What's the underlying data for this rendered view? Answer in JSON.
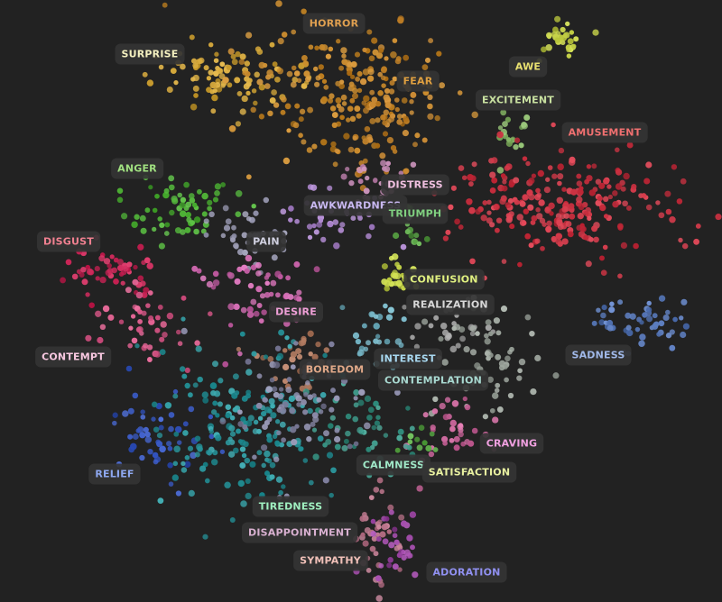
{
  "chart_data": {
    "type": "scatter",
    "title": "",
    "xlabel": "",
    "ylabel": "",
    "grid": false,
    "legend": "none",
    "background": "#222222",
    "series": [
      {
        "name": "SURPRISE",
        "color": "#d4a73a",
        "cx": 255,
        "cy": 85,
        "sx": 38,
        "sy": 18,
        "n": 90
      },
      {
        "name": "HORROR",
        "color": "#c98a2c",
        "cx": 370,
        "cy": 95,
        "sx": 55,
        "sy": 40,
        "n": 150
      },
      {
        "name": "FEAR",
        "color": "#c2822a",
        "cx": 425,
        "cy": 125,
        "sx": 25,
        "sy": 40,
        "n": 90
      },
      {
        "name": "AWE",
        "color": "#c8d44a",
        "cx": 625,
        "cy": 50,
        "sx": 12,
        "sy": 12,
        "n": 30
      },
      {
        "name": "EXCITEMENT",
        "color": "#8ab86a",
        "cx": 562,
        "cy": 148,
        "sx": 14,
        "sy": 12,
        "n": 20
      },
      {
        "name": "AMUSEMENT",
        "color": "#d23848",
        "cx": 615,
        "cy": 228,
        "sx": 62,
        "sy": 30,
        "n": 240
      },
      {
        "name": "ANGER",
        "color": "#52b63a",
        "cx": 205,
        "cy": 228,
        "sx": 28,
        "sy": 22,
        "n": 60
      },
      {
        "name": "DISTRESS",
        "color": "#c086b0",
        "cx": 415,
        "cy": 200,
        "sx": 18,
        "sy": 14,
        "n": 30
      },
      {
        "name": "AWKWARDNESS",
        "color": "#b08ad0",
        "cx": 365,
        "cy": 240,
        "sx": 30,
        "sy": 16,
        "n": 40
      },
      {
        "name": "TRIUMPH",
        "color": "#5ea84a",
        "cx": 455,
        "cy": 252,
        "sx": 12,
        "sy": 12,
        "n": 12
      },
      {
        "name": "DISGUST",
        "color": "#d02a5c",
        "cx": 120,
        "cy": 300,
        "sx": 25,
        "sy": 14,
        "n": 50
      },
      {
        "name": "PAIN",
        "color": "#a0a0b8",
        "cx": 275,
        "cy": 265,
        "sx": 22,
        "sy": 18,
        "n": 40
      },
      {
        "name": "CONFUSION",
        "color": "#c8d84a",
        "cx": 438,
        "cy": 308,
        "sx": 10,
        "sy": 10,
        "n": 25
      },
      {
        "name": "REALIZATION",
        "color": "#a8a8a8",
        "cx": 505,
        "cy": 360,
        "sx": 25,
        "sy": 18,
        "n": 30
      },
      {
        "name": "DESIRE",
        "color": "#d06ab0",
        "cx": 280,
        "cy": 325,
        "sx": 35,
        "sy": 22,
        "n": 55
      },
      {
        "name": "CONTEMPT",
        "color": "#e06090",
        "cx": 160,
        "cy": 355,
        "sx": 25,
        "sy": 25,
        "n": 45
      },
      {
        "name": "SADNESS",
        "color": "#5d7ec0",
        "cx": 710,
        "cy": 362,
        "sx": 25,
        "sy": 18,
        "n": 50
      },
      {
        "name": "INTEREST",
        "color": "#78b8c8",
        "cx": 420,
        "cy": 380,
        "sx": 18,
        "sy": 22,
        "n": 30
      },
      {
        "name": "BOREDOM",
        "color": "#b07a60",
        "cx": 325,
        "cy": 395,
        "sx": 22,
        "sy": 18,
        "n": 30
      },
      {
        "name": "CONTEMPLATION",
        "color": "#a0a8a0",
        "cx": 545,
        "cy": 400,
        "sx": 30,
        "sy": 30,
        "n": 60
      },
      {
        "name": "CRAVING",
        "color": "#d06aa0",
        "cx": 505,
        "cy": 475,
        "sx": 25,
        "sy": 18,
        "n": 35
      },
      {
        "name": "RELIEF",
        "color": "#3b5cc8",
        "cx": 175,
        "cy": 485,
        "sx": 25,
        "sy": 22,
        "n": 50
      },
      {
        "name": "CALMNESS",
        "color": "#3d9a8a",
        "cx": 400,
        "cy": 475,
        "sx": 30,
        "sy": 25,
        "n": 50
      },
      {
        "name": "SATISFACTION",
        "color": "#5eae4a",
        "cx": 465,
        "cy": 495,
        "sx": 10,
        "sy": 8,
        "n": 10
      },
      {
        "name": "TIREDNESS",
        "color": "#2e9aa0",
        "cx": 280,
        "cy": 475,
        "sx": 45,
        "sy": 45,
        "n": 180
      },
      {
        "name": "DISAPPOINTMENT",
        "color": "#8a8aa8",
        "cx": 330,
        "cy": 450,
        "sx": 35,
        "sy": 40,
        "n": 80
      },
      {
        "name": "SYMPATHY",
        "color": "#c07a90",
        "cx": 420,
        "cy": 590,
        "sx": 15,
        "sy": 30,
        "n": 40
      },
      {
        "name": "ADORATION",
        "color": "#a048a8",
        "cx": 435,
        "cy": 610,
        "sx": 15,
        "sy": 20,
        "n": 30
      }
    ],
    "labels": [
      {
        "text": "HORROR",
        "color": "#e0a050",
        "x": 370,
        "y": 26
      },
      {
        "text": "SURPRISE",
        "color": "#f4f0c0",
        "x": 166,
        "y": 60
      },
      {
        "text": "AWE",
        "color": "#e8e070",
        "x": 585,
        "y": 74
      },
      {
        "text": "FEAR",
        "color": "#e0a040",
        "x": 463,
        "y": 90
      },
      {
        "text": "EXCITEMENT",
        "color": "#c8e0a0",
        "x": 574,
        "y": 111
      },
      {
        "text": "AMUSEMENT",
        "color": "#f07070",
        "x": 670,
        "y": 147
      },
      {
        "text": "ANGER",
        "color": "#a0e080",
        "x": 152,
        "y": 187
      },
      {
        "text": "DISTRESS",
        "color": "#f0c0e0",
        "x": 460,
        "y": 205
      },
      {
        "text": "AWKWARDNESS",
        "color": "#c8b8f0",
        "x": 394,
        "y": 228
      },
      {
        "text": "TRIUMPH",
        "color": "#80d080",
        "x": 460,
        "y": 237
      },
      {
        "text": "DISGUST",
        "color": "#f08090",
        "x": 76,
        "y": 268
      },
      {
        "text": "PAIN",
        "color": "#d0d0e0",
        "x": 295,
        "y": 268
      },
      {
        "text": "CONFUSION",
        "color": "#e0f080",
        "x": 492,
        "y": 310
      },
      {
        "text": "REALIZATION",
        "color": "#d8d8d8",
        "x": 499,
        "y": 338
      },
      {
        "text": "DESIRE",
        "color": "#f0a0d8",
        "x": 328,
        "y": 346
      },
      {
        "text": "SADNESS",
        "color": "#a0b8e8",
        "x": 663,
        "y": 394
      },
      {
        "text": "CONTEMPT",
        "color": "#f8c8e0",
        "x": 81,
        "y": 396
      },
      {
        "text": "INTEREST",
        "color": "#a8d8f0",
        "x": 452,
        "y": 398
      },
      {
        "text": "BOREDOM",
        "color": "#e0a888",
        "x": 371,
        "y": 410
      },
      {
        "text": "CONTEMPLATION",
        "color": "#a8d8d0",
        "x": 480,
        "y": 422
      },
      {
        "text": "CRAVING",
        "color": "#f0a0e0",
        "x": 567,
        "y": 492
      },
      {
        "text": "CALMNESS",
        "color": "#a0e8c8",
        "x": 436,
        "y": 516
      },
      {
        "text": "RELIEF",
        "color": "#8ea8f0",
        "x": 127,
        "y": 526
      },
      {
        "text": "SATISFACTION",
        "color": "#e8f0a0",
        "x": 520,
        "y": 524
      },
      {
        "text": "TIREDNESS",
        "color": "#a0f0c0",
        "x": 322,
        "y": 562
      },
      {
        "text": "DISAPPOINTMENT",
        "color": "#d8b0d0",
        "x": 332,
        "y": 591
      },
      {
        "text": "SYMPATHY",
        "color": "#f0c0b8",
        "x": 366,
        "y": 622
      },
      {
        "text": "ADORATION",
        "color": "#9090f0",
        "x": 517,
        "y": 635
      }
    ]
  }
}
